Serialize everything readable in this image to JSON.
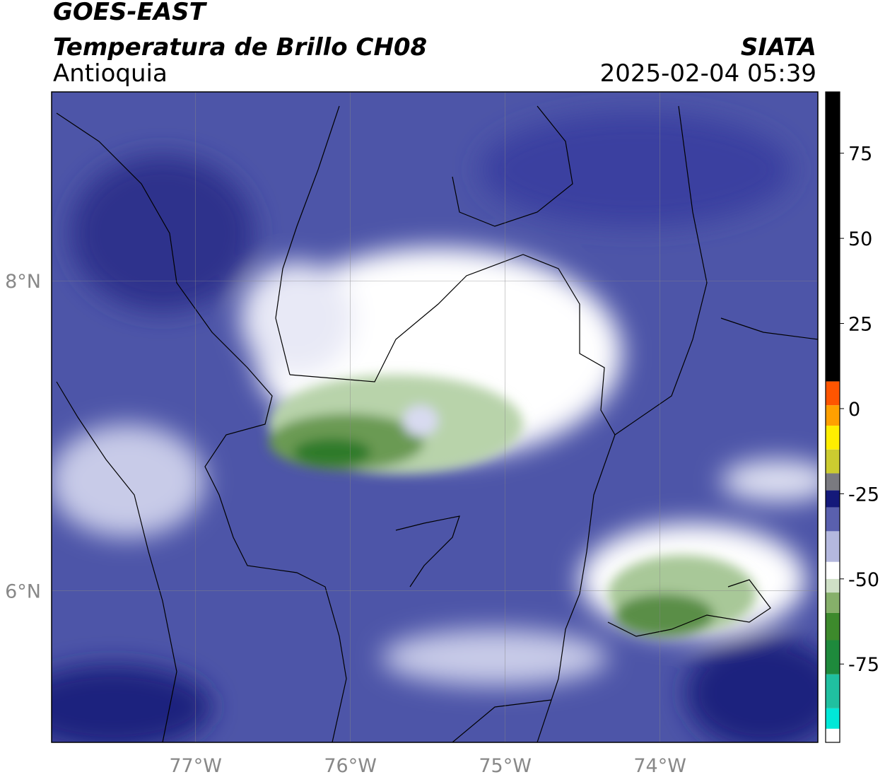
{
  "map": {
    "title": "GOES-EAST",
    "subtitle": "Temperatura de Brillo CH08",
    "region": "Antioquia",
    "source": "SIATA",
    "timestamp": "2025-02-04 05:39",
    "xlim": [
      -77.93,
      -72.98
    ],
    "ylim": [
      5.02,
      9.22
    ],
    "xticks": [
      {
        "value": -77,
        "label": "77°W"
      },
      {
        "value": -76,
        "label": "76°W"
      },
      {
        "value": -75,
        "label": "75°W"
      },
      {
        "value": -74,
        "label": "74°W"
      }
    ],
    "yticks": [
      {
        "value": 8,
        "label": "8°N"
      },
      {
        "value": 6,
        "label": "6°N"
      }
    ],
    "grid": true,
    "colorbar": {
      "lim": [
        -98,
        93
      ],
      "ticks": [
        75,
        50,
        25,
        0,
        -25,
        -50,
        -75
      ],
      "stops": [
        {
          "value": -98,
          "color": "#ffffff"
        },
        {
          "value": -94,
          "color": "#00e8d8"
        },
        {
          "value": -88,
          "color": "#20c0a0"
        },
        {
          "value": -78,
          "color": "#1e8a3c"
        },
        {
          "value": -68,
          "color": "#3d8a2c"
        },
        {
          "value": -60,
          "color": "#86b06a"
        },
        {
          "value": -54,
          "color": "#cfe0c6"
        },
        {
          "value": -50,
          "color": "#ffffff"
        },
        {
          "value": -45,
          "color": "#b4b8de"
        },
        {
          "value": -36,
          "color": "#5a60ae"
        },
        {
          "value": -29,
          "color": "#14197a"
        },
        {
          "value": -24,
          "color": "#7a7a80"
        },
        {
          "value": -19,
          "color": "#cccc30"
        },
        {
          "value": -12,
          "color": "#ffee00"
        },
        {
          "value": -5,
          "color": "#ffa000"
        },
        {
          "value": 1,
          "color": "#ff5500"
        },
        {
          "value": 8,
          "color": "#000000"
        }
      ]
    }
  }
}
